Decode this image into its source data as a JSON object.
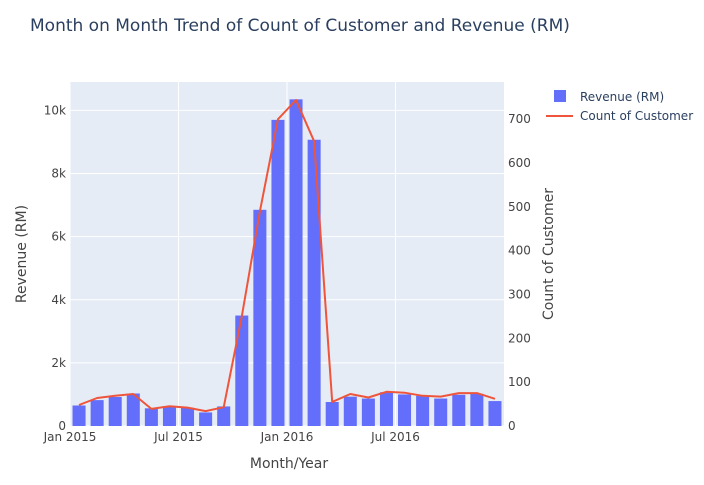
{
  "chart_data": {
    "type": "bar",
    "title": "Month on Month Trend of Count of Customer and Revenue (RM)",
    "xlabel": "Month/Year",
    "ylabel": "Revenue (RM)",
    "y2label": "Count of Customer",
    "x_ticks": [
      "Jan 2015",
      "Jul 2015",
      "Jan 2016",
      "Jul 2016"
    ],
    "y_ticks": [
      "0",
      "2k",
      "4k",
      "6k",
      "8k",
      "10k"
    ],
    "y2_ticks": [
      "0",
      "100",
      "200",
      "300",
      "400",
      "500",
      "600",
      "700"
    ],
    "ylim": [
      0,
      10900
    ],
    "y2lim": [
      0,
      785
    ],
    "x": [
      "2015-01",
      "2015-02",
      "2015-03",
      "2015-04",
      "2015-05",
      "2015-06",
      "2015-07",
      "2015-08",
      "2015-09",
      "2015-10",
      "2015-11",
      "2015-12",
      "2016-01",
      "2016-02",
      "2016-03",
      "2016-04",
      "2016-05",
      "2016-06",
      "2016-07",
      "2016-08",
      "2016-09",
      "2016-10",
      "2016-11",
      "2016-12"
    ],
    "series": [
      {
        "name": "Revenue (RM)",
        "type": "bar",
        "axis": "y",
        "color": "#636efa",
        "values": [
          650,
          820,
          920,
          1030,
          560,
          630,
          580,
          430,
          620,
          3500,
          6850,
          9700,
          10350,
          9070,
          760,
          930,
          870,
          1070,
          1000,
          960,
          870,
          990,
          1020,
          790
        ]
      },
      {
        "name": "Count of Customer",
        "type": "line",
        "axis": "y2",
        "color": "#ef553b",
        "values": [
          48,
          64,
          69,
          73,
          39,
          45,
          42,
          34,
          43,
          250,
          490,
          700,
          744,
          650,
          55,
          73,
          65,
          78,
          76,
          69,
          67,
          75,
          75,
          62
        ]
      }
    ],
    "legend_position": "top-right",
    "grid": true,
    "plot_background": "#e5ecf6"
  }
}
